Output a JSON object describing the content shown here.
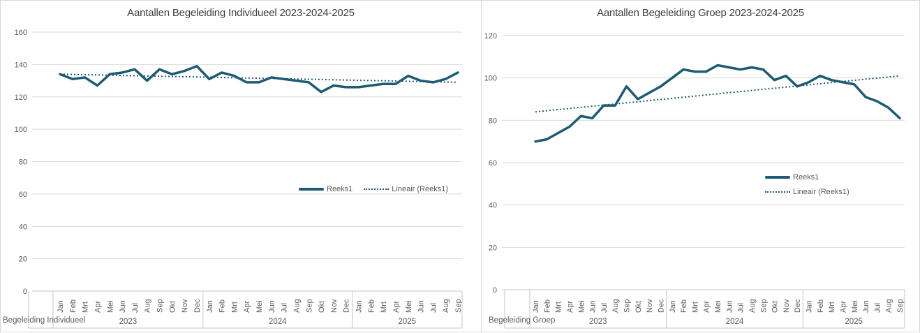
{
  "colors": {
    "series": "#1d5a73",
    "trend": "#1d5a73",
    "gridline": "#d9d9d9",
    "axis_line": "#c6c6c6",
    "title_text": "#404040",
    "axis_text": "#595959",
    "panel_border": "#d9d9d9"
  },
  "chart_data": [
    {
      "type": "line",
      "title": "Aantallen Begeleiding Individueel 2023-2024-2025",
      "bottom_label": "Begeleiding Individueel",
      "ylim": [
        0,
        160
      ],
      "ytick_step": 20,
      "y_ticks": [
        0,
        20,
        40,
        60,
        80,
        100,
        120,
        140,
        160
      ],
      "grid": true,
      "legend_position": "inside-center-horizontal",
      "year_groups": [
        {
          "year": "2023",
          "months": [
            "Jan",
            "Feb",
            "Mrt",
            "Apr",
            "Mei",
            "Jun",
            "Jul",
            "Aug",
            "Sep",
            "Okt",
            "Nov",
            "Dec"
          ]
        },
        {
          "year": "2024",
          "months": [
            "Jan",
            "Feb",
            "Mrt",
            "Apr",
            "Mei",
            "Jun",
            "Jul",
            "Aug",
            "Sep",
            "Okt",
            "Nov",
            "Dec"
          ]
        },
        {
          "year": "2025",
          "months": [
            "Jan",
            "Feb",
            "Mrt",
            "Apr",
            "Mei",
            "Jun",
            "Jul",
            "Aug",
            "Sep"
          ]
        }
      ],
      "series": [
        {
          "name": "Reeks1",
          "style": "solid",
          "values": [
            134,
            131,
            132,
            127,
            134,
            135,
            137,
            130,
            137,
            134,
            136,
            139,
            131,
            135,
            133,
            129,
            129,
            132,
            131,
            130,
            129,
            123,
            127,
            126,
            126,
            127,
            128,
            128,
            133,
            130,
            129,
            131,
            135
          ]
        },
        {
          "name": "Lineair (Reeks1)",
          "style": "dotted-trend",
          "trend_start": 134,
          "trend_end": 129
        }
      ]
    },
    {
      "type": "line",
      "title": "Aantallen Begeleiding Groep 2023-2024-2025",
      "bottom_label": "Begeleiding Groep",
      "ylim": [
        0,
        120
      ],
      "ytick_step": 20,
      "y_ticks": [
        0,
        20,
        40,
        60,
        80,
        100,
        120
      ],
      "grid": true,
      "legend_position": "inside-right-stacked",
      "year_groups": [
        {
          "year": "2023",
          "months": [
            "Jan",
            "Feb",
            "Mrt",
            "Apr",
            "Mei",
            "Jun",
            "Jul",
            "Aug",
            "Sep",
            "Okt",
            "Nov",
            "Dec"
          ]
        },
        {
          "year": "2024",
          "months": [
            "Jan",
            "Feb",
            "Mrt",
            "Apr",
            "Mei",
            "Jun",
            "Jul",
            "Aug",
            "Sep",
            "Okt",
            "Nov",
            "Dec"
          ]
        },
        {
          "year": "2025",
          "months": [
            "Jan",
            "Feb",
            "Mrt",
            "Apr",
            "Mei",
            "Jun",
            "Jul",
            "Aug",
            "Sep"
          ]
        }
      ],
      "series": [
        {
          "name": "Reeks1",
          "style": "solid",
          "values": [
            70,
            71,
            74,
            77,
            82,
            81,
            87,
            87,
            96,
            90,
            93,
            96,
            100,
            104,
            103,
            103,
            106,
            105,
            104,
            105,
            104,
            99,
            101,
            96,
            98,
            101,
            99,
            98,
            97,
            91,
            89,
            86,
            81
          ]
        },
        {
          "name": "Lineair (Reeks1)",
          "style": "dotted-trend",
          "trend_start": 84,
          "trend_end": 101
        }
      ]
    }
  ]
}
